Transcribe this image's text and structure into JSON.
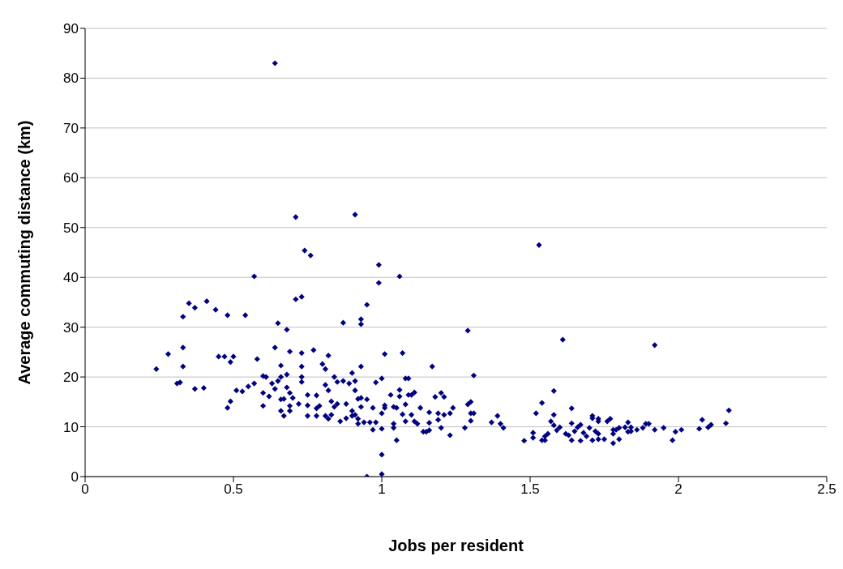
{
  "chart_data": {
    "type": "scatter",
    "xlabel": "Jobs per resident",
    "ylabel": "Average commuting distance (km)",
    "xlim": [
      0,
      2.5
    ],
    "xticks": [
      0,
      0.5,
      1,
      1.5,
      2,
      2.5
    ],
    "ylim": [
      0,
      90
    ],
    "yticks": [
      0,
      10,
      20,
      30,
      40,
      50,
      60,
      70,
      80,
      90
    ],
    "grid": "y",
    "marker": "diamond",
    "series": [
      {
        "color": "#000080",
        "x": [
          0.64,
          0.71,
          0.91,
          0.74,
          0.76,
          0.99,
          1.53,
          0.57,
          0.71,
          0.73,
          0.68,
          0.65,
          0.33,
          0.35,
          0.37,
          0.41,
          0.44,
          0.48,
          0.54,
          0.87,
          0.93,
          0.93,
          0.95,
          0.99,
          1.06,
          0.24,
          0.28,
          0.33,
          0.33,
          0.31,
          0.32,
          0.37,
          0.4,
          0.45,
          0.47,
          0.5,
          0.49,
          0.58,
          0.49,
          0.48,
          0.51,
          0.53,
          0.55,
          0.57,
          0.6,
          0.61,
          0.6,
          0.62,
          0.6,
          0.64,
          0.66,
          0.69,
          0.73,
          0.77,
          0.82,
          0.73,
          0.73,
          0.73,
          0.8,
          0.81,
          0.93,
          1.01,
          1.07,
          1.0,
          1.08,
          0.98,
          0.63,
          0.65,
          0.66,
          0.68,
          0.64,
          0.68,
          0.66,
          0.67,
          0.66,
          0.67,
          0.69,
          0.7,
          0.69,
          0.69,
          0.72,
          0.75,
          0.75,
          0.75,
          0.78,
          0.78,
          0.79,
          0.78,
          0.81,
          0.82,
          0.83,
          0.84,
          0.85,
          0.84,
          0.85,
          0.81,
          0.83,
          0.82,
          0.86,
          0.88,
          0.9,
          0.88,
          0.9,
          0.91,
          0.87,
          0.89,
          0.9,
          0.91,
          0.91,
          0.92,
          0.93,
          0.95,
          0.93,
          0.92,
          0.92,
          0.94,
          0.96,
          0.97,
          0.97,
          0.98,
          1.0,
          1.0,
          0.95,
          1.0,
          1.0,
          1.01,
          1.01,
          1.03,
          1.04,
          1.04,
          1.05,
          1.04,
          1.05,
          1.06,
          1.06,
          1.07,
          1.08,
          1.08,
          1.09,
          1.1,
          1.11,
          1.1,
          1.11,
          1.12,
          1.13,
          1.14,
          1.16,
          1.09,
          1.17,
          1.18,
          1.2,
          1.21,
          1.16,
          1.19,
          1.21,
          1.19,
          1.2,
          1.15,
          1.16,
          1.23,
          1.23,
          1.24,
          1.28,
          1.29,
          1.29,
          1.3,
          1.3,
          1.31,
          1.3,
          1.31,
          1.37,
          1.39,
          1.4,
          1.41,
          1.48,
          1.51,
          1.51,
          1.52,
          1.54,
          1.61,
          1.58,
          1.58,
          1.57,
          1.58,
          1.54,
          1.55,
          1.56,
          1.55,
          1.59,
          1.6,
          1.62,
          1.64,
          1.63,
          1.64,
          1.64,
          1.65,
          1.66,
          1.67,
          1.67,
          1.68,
          1.69,
          1.71,
          1.7,
          1.71,
          1.71,
          1.73,
          1.73,
          1.72,
          1.73,
          1.73,
          1.75,
          1.76,
          1.77,
          1.78,
          1.78,
          1.8,
          1.78,
          1.79,
          1.8,
          1.82,
          1.83,
          1.84,
          1.83,
          1.84,
          1.86,
          1.88,
          1.89,
          1.9,
          1.92,
          1.92,
          1.95,
          1.98,
          1.99,
          2.01,
          2.07,
          2.08,
          2.1,
          2.11,
          2.16,
          2.17
        ],
        "values": [
          83,
          52.1,
          52.6,
          45.4,
          44.4,
          42.5,
          46.5,
          40.2,
          35.6,
          36.1,
          29.5,
          30.8,
          32.1,
          34.8,
          33.9,
          35.2,
          33.5,
          32.4,
          32.4,
          30.9,
          30.6,
          31.6,
          34.5,
          38.9,
          40.2,
          21.6,
          24.6,
          25.9,
          22.1,
          18.7,
          18.9,
          17.6,
          17.8,
          24.1,
          24.1,
          24.1,
          23,
          23.6,
          15.1,
          13.8,
          17.3,
          17.1,
          18.1,
          18.7,
          20.2,
          20,
          16.8,
          16.1,
          14.2,
          25.9,
          22.3,
          25.1,
          24.8,
          25.4,
          24.3,
          22.1,
          20,
          19,
          22.6,
          21.6,
          22.1,
          24.6,
          24.8,
          19.7,
          19.7,
          18.9,
          18.7,
          19.2,
          20,
          20.5,
          17.6,
          17.9,
          15.5,
          15.6,
          13.2,
          12.2,
          16.8,
          15.8,
          14.2,
          13.2,
          14.6,
          14.3,
          16.4,
          12.2,
          16.3,
          13.7,
          14.2,
          12.2,
          18.4,
          17.3,
          15.1,
          14,
          14.6,
          20,
          19,
          12.2,
          12.4,
          11.6,
          11.1,
          11.7,
          12.2,
          14.6,
          13.2,
          12.4,
          19.2,
          18.7,
          20.8,
          19.2,
          17.3,
          15.6,
          15.8,
          15.5,
          14,
          11.6,
          10.6,
          10.9,
          10.9,
          9.4,
          13.8,
          10.9,
          12.7,
          9.6,
          0,
          4.4,
          0.5,
          14.3,
          13.8,
          16.4,
          10.6,
          9.8,
          7.3,
          14,
          13.8,
          17.4,
          16.1,
          12.5,
          11.1,
          14.5,
          16.4,
          16.4,
          16.9,
          12.4,
          11.1,
          10.6,
          13.8,
          9,
          10.8,
          19.7,
          22.1,
          16,
          16.8,
          16,
          12.9,
          12.7,
          12.4,
          11.4,
          9.8,
          9,
          9.3,
          8.3,
          12.7,
          13.8,
          9.8,
          29.3,
          14.5,
          15,
          12.7,
          12.7,
          11.2,
          20.3,
          10.9,
          12.2,
          10.6,
          9.8,
          7.2,
          8.8,
          7.8,
          12.7,
          14.8,
          27.5,
          17.2,
          12.4,
          11.1,
          10.3,
          7.3,
          8.1,
          8.6,
          7.3,
          9.3,
          9.9,
          8.6,
          7.3,
          8.3,
          13.7,
          10.7,
          9.1,
          9.9,
          10.4,
          7.2,
          8.8,
          8.1,
          7.3,
          9.8,
          11.7,
          12.2,
          11.6,
          11.1,
          9.1,
          8.6,
          7.5,
          7.5,
          11.1,
          11.6,
          9.4,
          6.7,
          7.5,
          8.6,
          9.4,
          9.8,
          9.9,
          10.9,
          9.9,
          9,
          9.1,
          9.4,
          9.8,
          10.6,
          10.6,
          26.4,
          9.4,
          9.8,
          7.3,
          9,
          9.4,
          9.6,
          11.4,
          9.9,
          10.4,
          10.7,
          13.3
        ]
      }
    ]
  }
}
